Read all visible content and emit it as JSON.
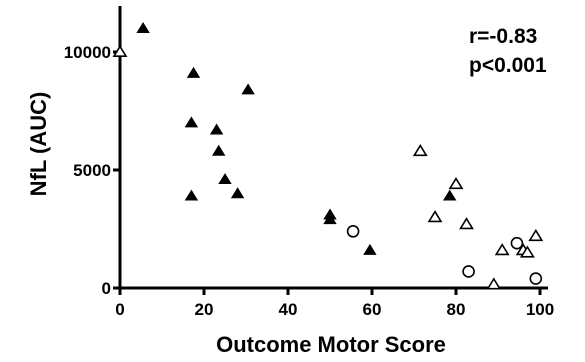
{
  "chart_data": {
    "type": "scatter",
    "title": "",
    "xlabel": "Outcome Motor Score",
    "ylabel": "NfL (AUC)",
    "xlim": [
      0,
      100
    ],
    "ylim": [
      0,
      12000
    ],
    "x_ticks": [
      0,
      20,
      40,
      60,
      80,
      100
    ],
    "y_ticks": [
      0,
      5000,
      10000
    ],
    "grid": false,
    "annotations": [
      "r=-0.83",
      "p<0.001"
    ],
    "series": [
      {
        "marker": "filled-triangle",
        "color": "#000000",
        "points": [
          {
            "x": 5.5,
            "y": 11000
          },
          {
            "x": 17.5,
            "y": 9100
          },
          {
            "x": 30.5,
            "y": 8400
          },
          {
            "x": 17,
            "y": 7000
          },
          {
            "x": 23,
            "y": 6700
          },
          {
            "x": 23.5,
            "y": 5800
          },
          {
            "x": 25,
            "y": 4600
          },
          {
            "x": 28,
            "y": 4000
          },
          {
            "x": 17,
            "y": 3900
          },
          {
            "x": 50,
            "y": 3100
          },
          {
            "x": 50,
            "y": 2900
          },
          {
            "x": 59.5,
            "y": 1600
          },
          {
            "x": 78.5,
            "y": 3900
          }
        ]
      },
      {
        "marker": "open-triangle",
        "color": "#000000",
        "points": [
          {
            "x": 0,
            "y": 10000
          },
          {
            "x": 71.5,
            "y": 5800
          },
          {
            "x": 80,
            "y": 4400
          },
          {
            "x": 75,
            "y": 3000
          },
          {
            "x": 82.5,
            "y": 2700
          },
          {
            "x": 99,
            "y": 2200
          },
          {
            "x": 91,
            "y": 1600
          },
          {
            "x": 96,
            "y": 1600
          },
          {
            "x": 97,
            "y": 1500
          },
          {
            "x": 89,
            "y": 150
          }
        ]
      },
      {
        "marker": "open-circle",
        "color": "#000000",
        "points": [
          {
            "x": 55.5,
            "y": 2400
          },
          {
            "x": 94.5,
            "y": 1900
          },
          {
            "x": 83,
            "y": 700
          },
          {
            "x": 99,
            "y": 400
          }
        ]
      }
    ]
  }
}
